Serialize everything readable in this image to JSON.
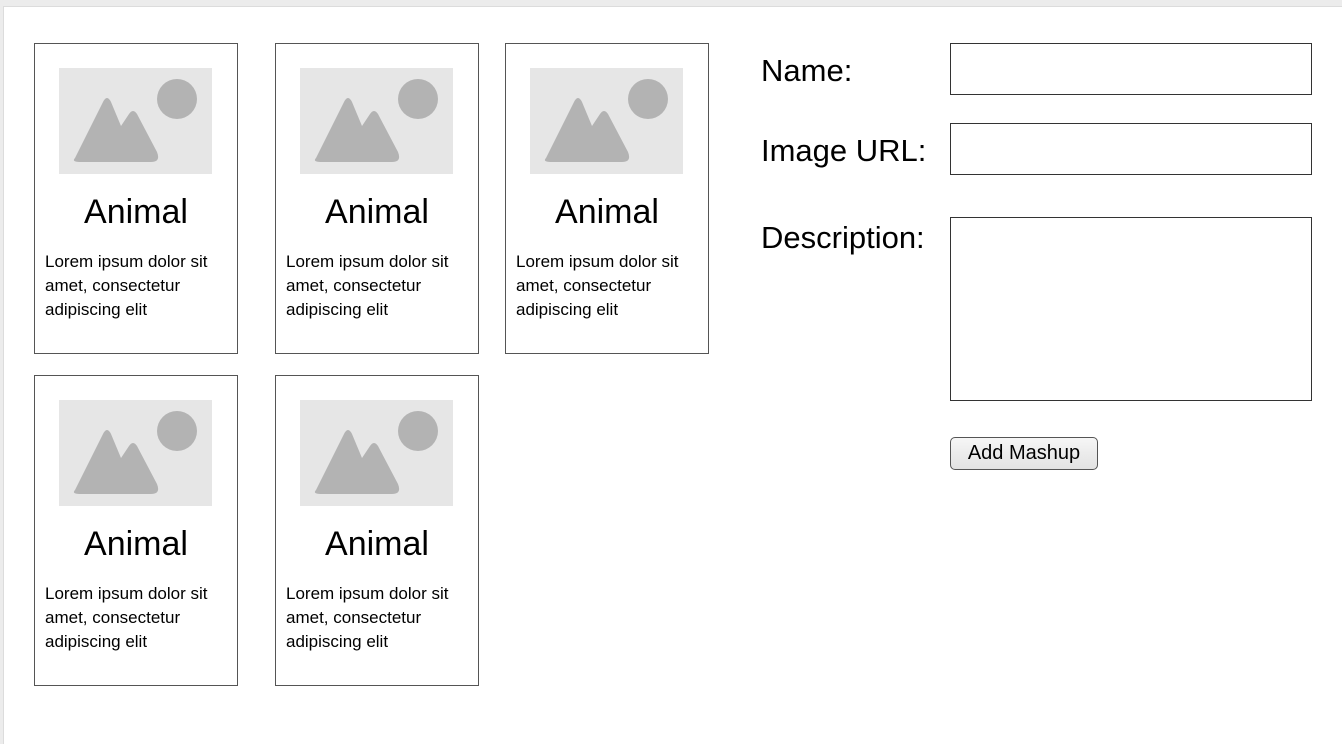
{
  "cards": [
    {
      "image_icon": "image-placeholder-icon",
      "title": "Animal",
      "description": "Lorem ipsum dolor sit amet, consectetur adipiscing elit"
    },
    {
      "image_icon": "image-placeholder-icon",
      "title": "Animal",
      "description": "Lorem ipsum dolor sit amet, consectetur adipiscing elit"
    },
    {
      "image_icon": "image-placeholder-icon",
      "title": "Animal",
      "description": "Lorem ipsum dolor sit amet, consectetur adipiscing elit"
    },
    {
      "image_icon": "image-placeholder-icon",
      "title": "Animal",
      "description": "Lorem ipsum dolor sit amet, consectetur adipiscing elit"
    },
    {
      "image_icon": "image-placeholder-icon",
      "title": "Animal",
      "description": "Lorem ipsum dolor sit amet, consectetur adipiscing elit"
    }
  ],
  "form": {
    "name_label": "Name:",
    "name_value": "",
    "image_url_label": "Image URL:",
    "image_url_value": "",
    "description_label": "Description:",
    "description_value": "",
    "submit_label": "Add Mashup"
  },
  "colors": {
    "placeholder_background": "#e6e6e6",
    "placeholder_shape": "#b3b3b3",
    "border": "#555555"
  }
}
